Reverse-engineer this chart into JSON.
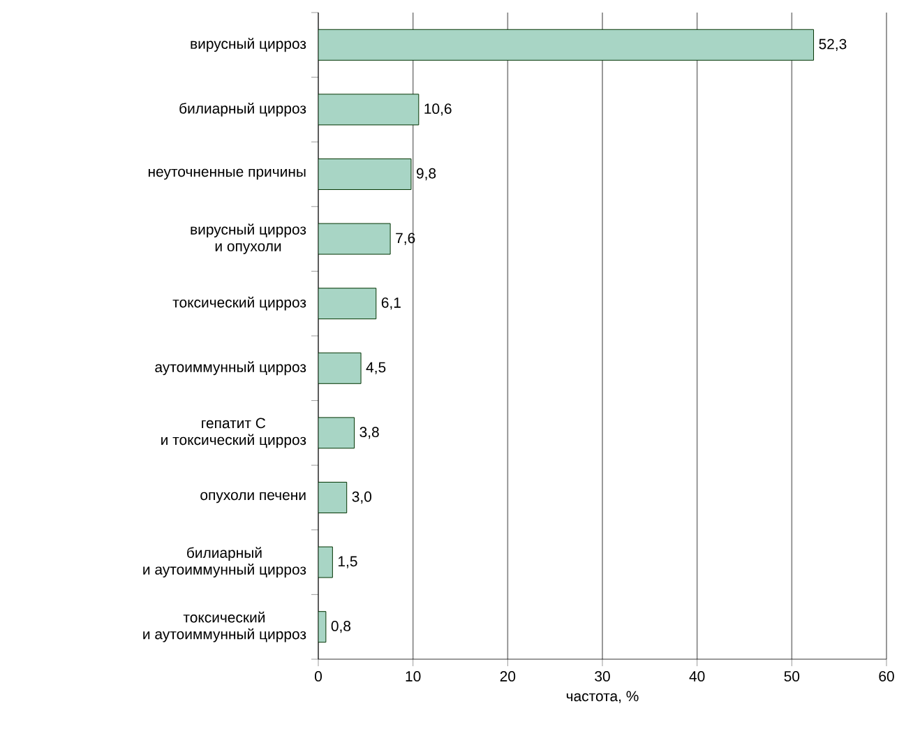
{
  "chart_data": {
    "type": "bar",
    "orientation": "horizontal",
    "xlabel": "частота, %",
    "categories": [
      "вирусный цирроз",
      "билиарный цирроз",
      "неуточненные причины",
      "вирусный цирроз\nи опухоли",
      "токсический цирроз",
      "аутоиммунный цирроз",
      "гепатит С\nи токсический цирроз",
      "опухоли печени",
      "билиарный\nи аутоиммунный цирроз",
      "токсический\nи аутоиммунный цирроз"
    ],
    "values": [
      52.3,
      10.6,
      9.8,
      7.6,
      6.1,
      4.5,
      3.8,
      3.0,
      1.5,
      0.8
    ],
    "value_labels": [
      "52,3",
      "10,6",
      "9,8",
      "7,6",
      "6,1",
      "4,5",
      "3,8",
      "3,0",
      "1,5",
      "0,8"
    ],
    "color": "#a8d5c5",
    "xlim": [
      0,
      60
    ],
    "xticks": [
      0,
      10,
      20,
      30,
      40,
      50,
      60
    ],
    "grid": "x"
  }
}
